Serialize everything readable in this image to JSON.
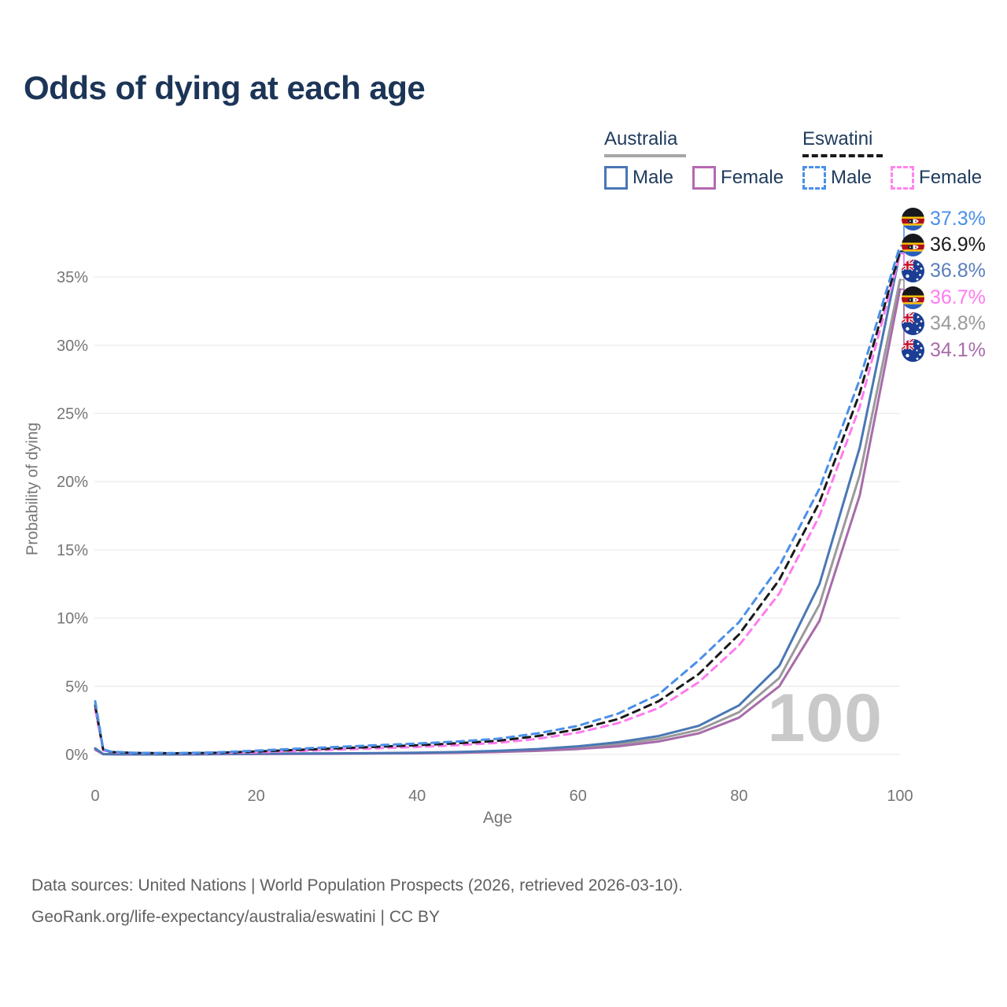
{
  "title": "Odds of dying at each age",
  "legend": {
    "groups": [
      {
        "name": "Australia",
        "line_style": "solid",
        "underline_color": "#a6a6a6",
        "items": [
          {
            "label": "Male",
            "color": "#4a77b4"
          },
          {
            "label": "Female",
            "color": "#b36ab0"
          }
        ]
      },
      {
        "name": "Eswatini",
        "line_style": "dashed",
        "underline_color": "#1a1a1a",
        "items": [
          {
            "label": "Male",
            "color": "#4a90e8"
          },
          {
            "label": "Female",
            "color": "#ff85ee"
          }
        ]
      }
    ]
  },
  "chart_data": {
    "type": "line",
    "title": "Odds of dying at each age",
    "xlabel": "Age",
    "ylabel": "Probability of dying",
    "xlim": [
      0,
      100
    ],
    "ylim": [
      0,
      37.5
    ],
    "x_ticks": [
      0,
      20,
      40,
      60,
      80,
      100
    ],
    "y_tick_values": [
      0,
      5,
      10,
      15,
      20,
      25,
      30,
      35
    ],
    "y_tick_labels": [
      "0%",
      "5%",
      "10%",
      "15%",
      "20%",
      "25%",
      "30%",
      "35%"
    ],
    "grid": "horizontal",
    "legend_position": "top-right",
    "age_counter": "100",
    "x": [
      0,
      1,
      2,
      5,
      10,
      15,
      20,
      25,
      30,
      35,
      40,
      45,
      50,
      55,
      60,
      65,
      70,
      75,
      80,
      85,
      90,
      95,
      100
    ],
    "series": [
      {
        "name": "Australia Both",
        "country": "australia",
        "sex": "both",
        "color": "#9a9a9a",
        "dash": false,
        "values": [
          0.4,
          0.03,
          0.02,
          0.01,
          0.01,
          0.02,
          0.05,
          0.06,
          0.07,
          0.09,
          0.11,
          0.15,
          0.22,
          0.33,
          0.5,
          0.75,
          1.15,
          1.8,
          3.1,
          5.6,
          11.0,
          20.5,
          34.8
        ]
      },
      {
        "name": "Australia Female",
        "country": "australia",
        "sex": "female",
        "color": "#a86caa",
        "dash": false,
        "values": [
          0.35,
          0.02,
          0.01,
          0.01,
          0.01,
          0.02,
          0.03,
          0.04,
          0.05,
          0.07,
          0.09,
          0.12,
          0.18,
          0.27,
          0.4,
          0.6,
          0.95,
          1.55,
          2.7,
          5.0,
          9.8,
          19.0,
          34.1
        ]
      },
      {
        "name": "Australia Male",
        "country": "australia",
        "sex": "male",
        "color": "#4a77b4",
        "dash": false,
        "values": [
          0.45,
          0.03,
          0.02,
          0.01,
          0.01,
          0.03,
          0.06,
          0.07,
          0.08,
          0.1,
          0.13,
          0.18,
          0.27,
          0.4,
          0.6,
          0.9,
          1.35,
          2.1,
          3.6,
          6.5,
          12.5,
          22.5,
          36.8
        ]
      },
      {
        "name": "Eswatini Female",
        "country": "eswatini",
        "sex": "female",
        "color": "#ff7bf0",
        "dash": true,
        "values": [
          3.3,
          0.3,
          0.16,
          0.1,
          0.08,
          0.1,
          0.16,
          0.25,
          0.35,
          0.45,
          0.55,
          0.68,
          0.85,
          1.15,
          1.6,
          2.3,
          3.4,
          5.3,
          8.0,
          11.8,
          17.5,
          25.5,
          36.7
        ]
      },
      {
        "name": "Eswatini Both",
        "country": "eswatini",
        "sex": "both",
        "color": "#1a1a1a",
        "dash": true,
        "values": [
          3.6,
          0.34,
          0.18,
          0.11,
          0.09,
          0.12,
          0.22,
          0.33,
          0.45,
          0.56,
          0.68,
          0.82,
          1.0,
          1.35,
          1.85,
          2.6,
          3.9,
          5.9,
          8.8,
          12.8,
          18.5,
          26.5,
          36.9
        ]
      },
      {
        "name": "Eswatini Male",
        "country": "eswatini",
        "sex": "male",
        "color": "#4a8fe8",
        "dash": true,
        "values": [
          3.9,
          0.38,
          0.2,
          0.12,
          0.1,
          0.15,
          0.28,
          0.42,
          0.55,
          0.68,
          0.8,
          0.95,
          1.15,
          1.55,
          2.1,
          3.0,
          4.4,
          6.9,
          9.7,
          13.8,
          19.5,
          27.5,
          37.3
        ]
      }
    ]
  },
  "end_labels": [
    {
      "label": "37.3%",
      "value": 37.3,
      "color": "#4a8fe8",
      "flag": "eswatini",
      "series": "Eswatini Male"
    },
    {
      "label": "36.9%",
      "value": 36.9,
      "color": "#1a1a1a",
      "flag": "eswatini",
      "series": "Eswatini Both"
    },
    {
      "label": "36.8%",
      "value": 36.8,
      "color": "#5b7fbd",
      "flag": "australia",
      "series": "Australia Male"
    },
    {
      "label": "36.7%",
      "value": 36.7,
      "color": "#ff7bf0",
      "flag": "eswatini",
      "series": "Eswatini Female"
    },
    {
      "label": "34.8%",
      "value": 34.8,
      "color": "#9a9a9a",
      "flag": "australia",
      "series": "Australia Both"
    },
    {
      "label": "34.1%",
      "value": 34.1,
      "color": "#a86caa",
      "flag": "australia",
      "series": "Australia Female"
    }
  ],
  "footer": {
    "line1": "Data sources: United Nations | World Population Prospects (2026, retrieved 2026-03-10).",
    "line2": "GeoRank.org/life-expectancy/australia/eswatini | CC BY"
  }
}
